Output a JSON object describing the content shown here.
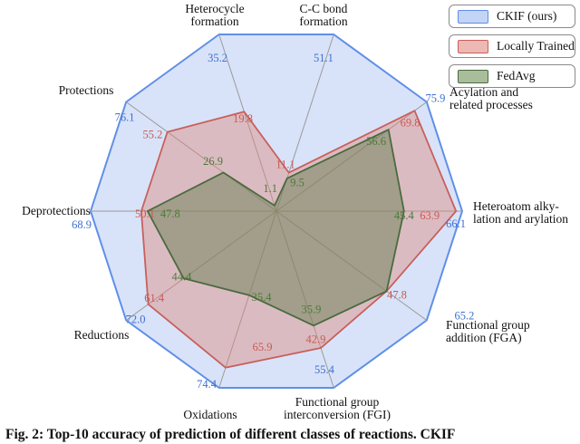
{
  "figure": {
    "caption": "Fig. 2: Top-10 accuracy of prediction of different classes of reactions. CKIF"
  },
  "legend": {
    "items": [
      {
        "label": "CKIF (ours)"
      },
      {
        "label": "Locally Trained"
      },
      {
        "label": "FedAvg"
      }
    ]
  },
  "chart_data": {
    "type": "radar",
    "title": "",
    "axes_count": 10,
    "grid": "spokes only",
    "legend_position": "top-right",
    "normalization": "each axis independently scaled so the CKIF value lies on the outer decagon",
    "value_labels_shown": true,
    "categories": [
      {
        "name": "C-C bond formation",
        "lines": [
          "C-C bond",
          "formation"
        ]
      },
      {
        "name": "Heterocycle formation",
        "lines": [
          "Heterocycle",
          "formation"
        ]
      },
      {
        "name": "Protections",
        "lines": [
          "Protections"
        ]
      },
      {
        "name": "Deprotections",
        "lines": [
          "Deprotections"
        ]
      },
      {
        "name": "Reductions",
        "lines": [
          "Reductions"
        ]
      },
      {
        "name": "Oxidations",
        "lines": [
          "Oxidations"
        ]
      },
      {
        "name": "Functional group interconversion (FGI)",
        "lines": [
          "Functional group",
          "interconversion (FGI)"
        ]
      },
      {
        "name": "Functional group addition (FGA)",
        "lines": [
          "Functional group",
          "addition (FGA)"
        ]
      },
      {
        "name": "Heteroatom alkylation and arylation",
        "lines": [
          "Heteroatom alky-",
          "lation and arylation"
        ]
      },
      {
        "name": "Acylation and related processes",
        "lines": [
          "Acylation and",
          "related processes"
        ]
      }
    ],
    "series": [
      {
        "name": "CKIF (ours)",
        "color": "#5f8fe8",
        "label_color": "#3f6fd1",
        "values": [
          51.1,
          35.2,
          76.1,
          68.9,
          72.0,
          74.4,
          55.4,
          65.2,
          66.1,
          75.9
        ]
      },
      {
        "name": "Locally Trained",
        "color": "#c8605b",
        "label_color": "#cc5a52",
        "values": [
          11.1,
          19.8,
          55.2,
          50.1,
          61.4,
          65.9,
          42.9,
          47.8,
          63.9,
          69.8
        ]
      },
      {
        "name": "FedAvg",
        "color": "#4a6a3e",
        "label_color": "#4c7a36",
        "values": [
          9.5,
          1.1,
          26.9,
          47.8,
          44.4,
          35.4,
          35.9,
          47.8,
          45.4,
          56.6
        ]
      }
    ]
  }
}
